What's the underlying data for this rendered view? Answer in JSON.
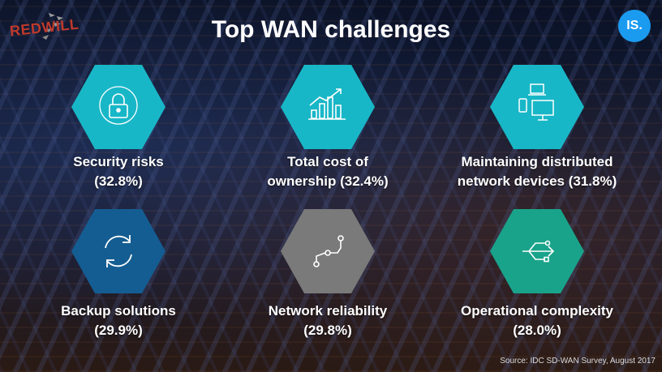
{
  "title": "Top WAN challenges",
  "logo": {
    "text": "REDWILL",
    "icon": "redwill-logo"
  },
  "badge": {
    "text": "IS."
  },
  "colors": {
    "teal": "#18b7c7",
    "navy": "#145d92",
    "gray": "#7a7a7a",
    "green": "#19a38a"
  },
  "challenges": [
    {
      "line1": "Security risks",
      "line2": "(32.8%)",
      "icon": "lock-icon",
      "color": "#18b7c7"
    },
    {
      "line1": "Total cost of",
      "line2": "ownership (32.4%)",
      "icon": "chart-icon",
      "color": "#18b7c7"
    },
    {
      "line1": "Maintaining distributed",
      "line2": "network devices (31.8%)",
      "icon": "devices-icon",
      "color": "#18b7c7"
    },
    {
      "line1": "Backup solutions",
      "line2": "(29.9%)",
      "icon": "refresh-icon",
      "color": "#145d92"
    },
    {
      "line1": "Network reliability",
      "line2": "(29.8%)",
      "icon": "network-path-icon",
      "color": "#7a7a7a"
    },
    {
      "line1": "Operational complexity",
      "line2": "(28.0%)",
      "icon": "share-arrows-icon",
      "color": "#19a38a"
    }
  ],
  "source": "Source: IDC SD-WAN Survey, August 2017"
}
